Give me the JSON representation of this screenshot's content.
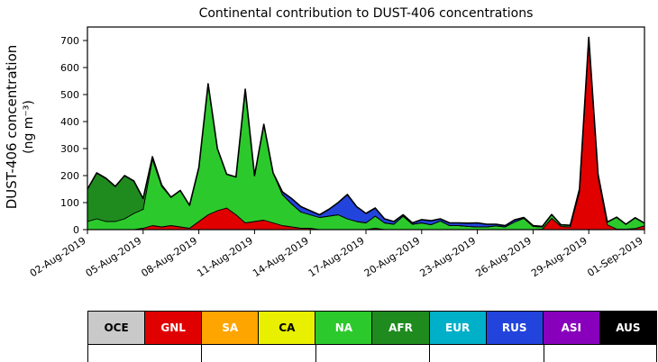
{
  "title": "Continental contribution to DUST-406 concentrations",
  "chart_data": {
    "type": "area",
    "stacked": true,
    "title": "Continental contribution to DUST-406 concentrations",
    "ylabel_line1": "DUST-406 concentration",
    "ylabel_line2": "(ng m⁻³)",
    "xlabel": "",
    "grid": false,
    "legend_position": "bottom",
    "xlim": [
      0,
      30
    ],
    "ylim": [
      0,
      750
    ],
    "y_ticks": [
      0,
      100,
      200,
      300,
      400,
      500,
      600,
      700
    ],
    "x_ticks": {
      "positions": [
        0,
        3,
        6,
        9,
        12,
        15,
        18,
        21,
        24,
        27,
        30
      ],
      "labels": [
        "02-Aug-2019",
        "05-Aug-2019",
        "08-Aug-2019",
        "11-Aug-2019",
        "14-Aug-2019",
        "17-Aug-2019",
        "20-Aug-2019",
        "23-Aug-2019",
        "26-Aug-2019",
        "29-Aug-2019",
        "01-Sep-2019"
      ]
    },
    "x": [
      0,
      0.5,
      1,
      1.5,
      2,
      2.5,
      3,
      3.5,
      4,
      4.5,
      5,
      5.5,
      6,
      6.5,
      7,
      7.5,
      8,
      8.5,
      9,
      9.5,
      10,
      10.5,
      11,
      11.5,
      12,
      12.5,
      13,
      13.5,
      14,
      14.5,
      15,
      15.5,
      16,
      16.5,
      17,
      17.5,
      18,
      18.5,
      19,
      19.5,
      20,
      20.5,
      21,
      21.5,
      22,
      22.5,
      23,
      23.5,
      24,
      24.5,
      25,
      25.5,
      26,
      26.5,
      27,
      27.5,
      28,
      28.5,
      29,
      29.5,
      30
    ],
    "series": [
      {
        "name": "GNL",
        "color": "#e00000",
        "values": [
          0,
          0,
          0,
          0,
          0,
          0,
          5,
          15,
          10,
          15,
          10,
          5,
          30,
          55,
          70,
          80,
          55,
          25,
          30,
          35,
          25,
          15,
          10,
          5,
          5,
          0,
          0,
          0,
          0,
          0,
          0,
          5,
          0,
          0,
          0,
          0,
          0,
          0,
          0,
          0,
          0,
          0,
          0,
          0,
          0,
          0,
          0,
          0,
          0,
          2,
          42,
          12,
          10,
          140,
          700,
          195,
          18,
          2,
          2,
          4,
          14
        ]
      },
      {
        "name": "NA",
        "color": "#2cc92c",
        "values": [
          30,
          40,
          30,
          30,
          40,
          60,
          70,
          245,
          150,
          105,
          135,
          85,
          200,
          485,
          230,
          125,
          140,
          495,
          170,
          355,
          185,
          115,
          85,
          60,
          50,
          45,
          50,
          55,
          40,
          30,
          25,
          45,
          25,
          20,
          50,
          20,
          25,
          18,
          32,
          15,
          15,
          12,
          10,
          10,
          14,
          10,
          28,
          42,
          12,
          8,
          14,
          6,
          6,
          10,
          12,
          10,
          10,
          44,
          18,
          40,
          10
        ]
      },
      {
        "name": "AFR",
        "color": "#1f8b1f",
        "values": [
          120,
          170,
          160,
          130,
          160,
          120,
          40,
          10,
          5,
          0,
          0,
          0,
          0,
          0,
          0,
          0,
          0,
          0,
          0,
          0,
          0,
          0,
          0,
          0,
          0,
          0,
          0,
          0,
          0,
          0,
          0,
          0,
          0,
          0,
          0,
          0,
          0,
          0,
          0,
          0,
          0,
          0,
          0,
          0,
          0,
          0,
          0,
          0,
          0,
          0,
          0,
          0,
          0,
          0,
          0,
          0,
          0,
          0,
          0,
          0,
          0
        ]
      },
      {
        "name": "RUS",
        "color": "#2244dd",
        "values": [
          0,
          0,
          0,
          0,
          0,
          0,
          0,
          0,
          0,
          0,
          0,
          0,
          0,
          0,
          0,
          0,
          0,
          0,
          0,
          0,
          0,
          10,
          20,
          20,
          15,
          10,
          25,
          45,
          90,
          55,
          35,
          30,
          15,
          10,
          5,
          5,
          12,
          15,
          8,
          10,
          10,
          12,
          15,
          10,
          6,
          5,
          8,
          3,
          3,
          2,
          0,
          0,
          0,
          0,
          0,
          0,
          0,
          0,
          0,
          0,
          0
        ]
      }
    ],
    "legend": [
      {
        "label": "OCE",
        "color": "#c9c9c9",
        "text_color": "#000000"
      },
      {
        "label": "GNL",
        "color": "#e00000",
        "text_color": "#ffffff"
      },
      {
        "label": "SA",
        "color": "#ffa500",
        "text_color": "#ffffff"
      },
      {
        "label": "CA",
        "color": "#e8f000",
        "text_color": "#000000"
      },
      {
        "label": "NA",
        "color": "#2cc92c",
        "text_color": "#ffffff"
      },
      {
        "label": "AFR",
        "color": "#1f8b1f",
        "text_color": "#ffffff"
      },
      {
        "label": "EUR",
        "color": "#00b0c8",
        "text_color": "#ffffff"
      },
      {
        "label": "RUS",
        "color": "#2244dd",
        "text_color": "#ffffff"
      },
      {
        "label": "ASI",
        "color": "#8800bb",
        "text_color": "#ffffff"
      },
      {
        "label": "AUS",
        "color": "#000000",
        "text_color": "#ffffff"
      }
    ]
  }
}
